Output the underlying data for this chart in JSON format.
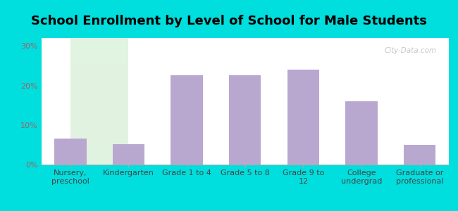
{
  "title": "School Enrollment by Level of School for Male Students",
  "categories": [
    "Nursery,\npreschool",
    "Kindergarten",
    "Grade 1 to 4",
    "Grade 5 to 8",
    "Grade 9 to\n12",
    "College\nundergrad",
    "Graduate or\nprofessional"
  ],
  "values": [
    6.5,
    5.2,
    22.5,
    22.5,
    24.0,
    16.0,
    5.0
  ],
  "bar_color": "#b8a8d0",
  "background_outer": "#00dede",
  "yticks": [
    0,
    10,
    20,
    30
  ],
  "ylim": [
    0,
    32
  ],
  "ylabel_color": "#996666",
  "title_fontsize": 13,
  "tick_fontsize": 8,
  "watermark": "City-Data.com"
}
